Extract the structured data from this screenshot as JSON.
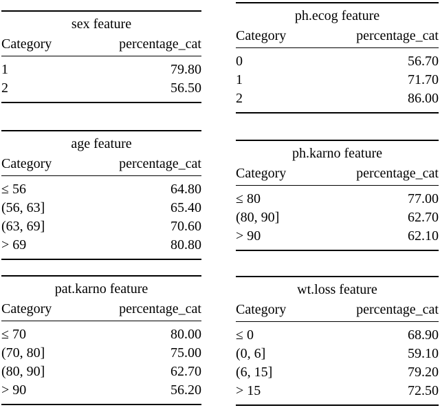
{
  "page": {
    "background": "#ffffff",
    "text_color": "#000000",
    "rule_color": "#000000"
  },
  "tables": {
    "sex": {
      "title": "sex feature",
      "headers": {
        "category": "Category",
        "value": "percentage_cat"
      },
      "rows": [
        {
          "label": "1",
          "value": "79.80"
        },
        {
          "label": "2",
          "value": "56.50"
        }
      ]
    },
    "ph_ecog": {
      "title": "ph.ecog feature",
      "headers": {
        "category": "Category",
        "value": "percentage_cat"
      },
      "rows": [
        {
          "label": "0",
          "value": "56.70"
        },
        {
          "label": "1",
          "value": "71.70"
        },
        {
          "label": "2",
          "value": "86.00"
        }
      ]
    },
    "age": {
      "title": "age feature",
      "headers": {
        "category": "Category",
        "value": "percentage_cat"
      },
      "rows": [
        {
          "label": "≤ 56",
          "value": "64.80"
        },
        {
          "label": "(56, 63]",
          "value": "65.40"
        },
        {
          "label": "(63, 69]",
          "value": "70.60"
        },
        {
          "label": "> 69",
          "value": "80.80"
        }
      ]
    },
    "ph_karno": {
      "title": "ph.karno feature",
      "headers": {
        "category": "Category",
        "value": "percentage_cat"
      },
      "rows": [
        {
          "label": "≤ 80",
          "value": "77.00"
        },
        {
          "label": "(80, 90]",
          "value": "62.70"
        },
        {
          "label": "> 90",
          "value": "62.10"
        }
      ]
    },
    "pat_karno": {
      "title": "pat.karno feature",
      "headers": {
        "category": "Category",
        "value": "percentage_cat"
      },
      "rows": [
        {
          "label": "≤ 70",
          "value": "80.00"
        },
        {
          "label": "(70, 80]",
          "value": "75.00"
        },
        {
          "label": "(80, 90]",
          "value": "62.70"
        },
        {
          "label": "> 90",
          "value": "56.20"
        }
      ]
    },
    "wt_loss": {
      "title": "wt.loss feature",
      "headers": {
        "category": "Category",
        "value": "percentage_cat"
      },
      "rows": [
        {
          "label": "≤ 0",
          "value": "68.90"
        },
        {
          "label": "(0, 6]",
          "value": "59.10"
        },
        {
          "label": "(6, 15]",
          "value": "79.20"
        },
        {
          "label": "> 15",
          "value": "72.50"
        }
      ]
    }
  }
}
